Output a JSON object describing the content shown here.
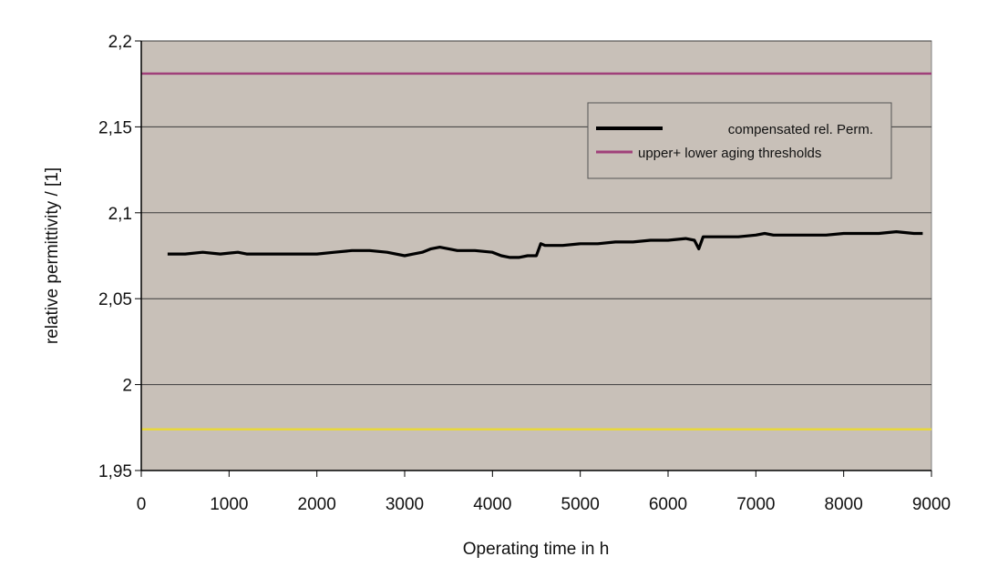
{
  "chart_data": {
    "type": "line",
    "xlabel": "Operating time in h",
    "ylabel": "relative permittivity / [1]",
    "xlim": [
      0,
      9000
    ],
    "ylim": [
      1.95,
      2.2
    ],
    "x_ticks": [
      0,
      1000,
      2000,
      3000,
      4000,
      5000,
      6000,
      7000,
      8000,
      9000
    ],
    "y_ticks": [
      1.95,
      2.0,
      2.05,
      2.1,
      2.15,
      2.2
    ],
    "y_tick_labels": [
      "1,95",
      "2",
      "2,05",
      "2,1",
      "2,15",
      "2,2"
    ],
    "grid": "horizontal",
    "legend_position": "top-right",
    "plot_background": "#c8c0b8",
    "series": [
      {
        "name": "compensated rel. Perm.",
        "color": "#000000",
        "x": [
          300,
          500,
          700,
          900,
          1100,
          1200,
          1400,
          1600,
          1800,
          2000,
          2200,
          2400,
          2600,
          2800,
          3000,
          3100,
          3200,
          3300,
          3400,
          3500,
          3600,
          3800,
          4000,
          4100,
          4200,
          4300,
          4400,
          4500,
          4550,
          4600,
          4800,
          5000,
          5200,
          5400,
          5600,
          5800,
          6000,
          6200,
          6300,
          6350,
          6400,
          6600,
          6800,
          7000,
          7100,
          7200,
          7400,
          7600,
          7800,
          8000,
          8200,
          8400,
          8600,
          8800,
          8900
        ],
        "values": [
          2.076,
          2.076,
          2.077,
          2.076,
          2.077,
          2.076,
          2.076,
          2.076,
          2.076,
          2.076,
          2.077,
          2.078,
          2.078,
          2.077,
          2.075,
          2.076,
          2.077,
          2.079,
          2.08,
          2.079,
          2.078,
          2.078,
          2.077,
          2.075,
          2.074,
          2.074,
          2.075,
          2.075,
          2.082,
          2.081,
          2.081,
          2.082,
          2.082,
          2.083,
          2.083,
          2.084,
          2.084,
          2.085,
          2.084,
          2.079,
          2.086,
          2.086,
          2.086,
          2.087,
          2.088,
          2.087,
          2.087,
          2.087,
          2.087,
          2.088,
          2.088,
          2.088,
          2.089,
          2.088,
          2.088
        ]
      },
      {
        "name": "upper+ lower aging thresholds",
        "color": "#a0407a",
        "x": [
          0,
          9000
        ],
        "values": [
          2.181,
          2.181
        ]
      },
      {
        "name": "",
        "color": "#e8d83a",
        "x": [
          0,
          9000
        ],
        "values": [
          1.974,
          1.974
        ]
      }
    ]
  }
}
